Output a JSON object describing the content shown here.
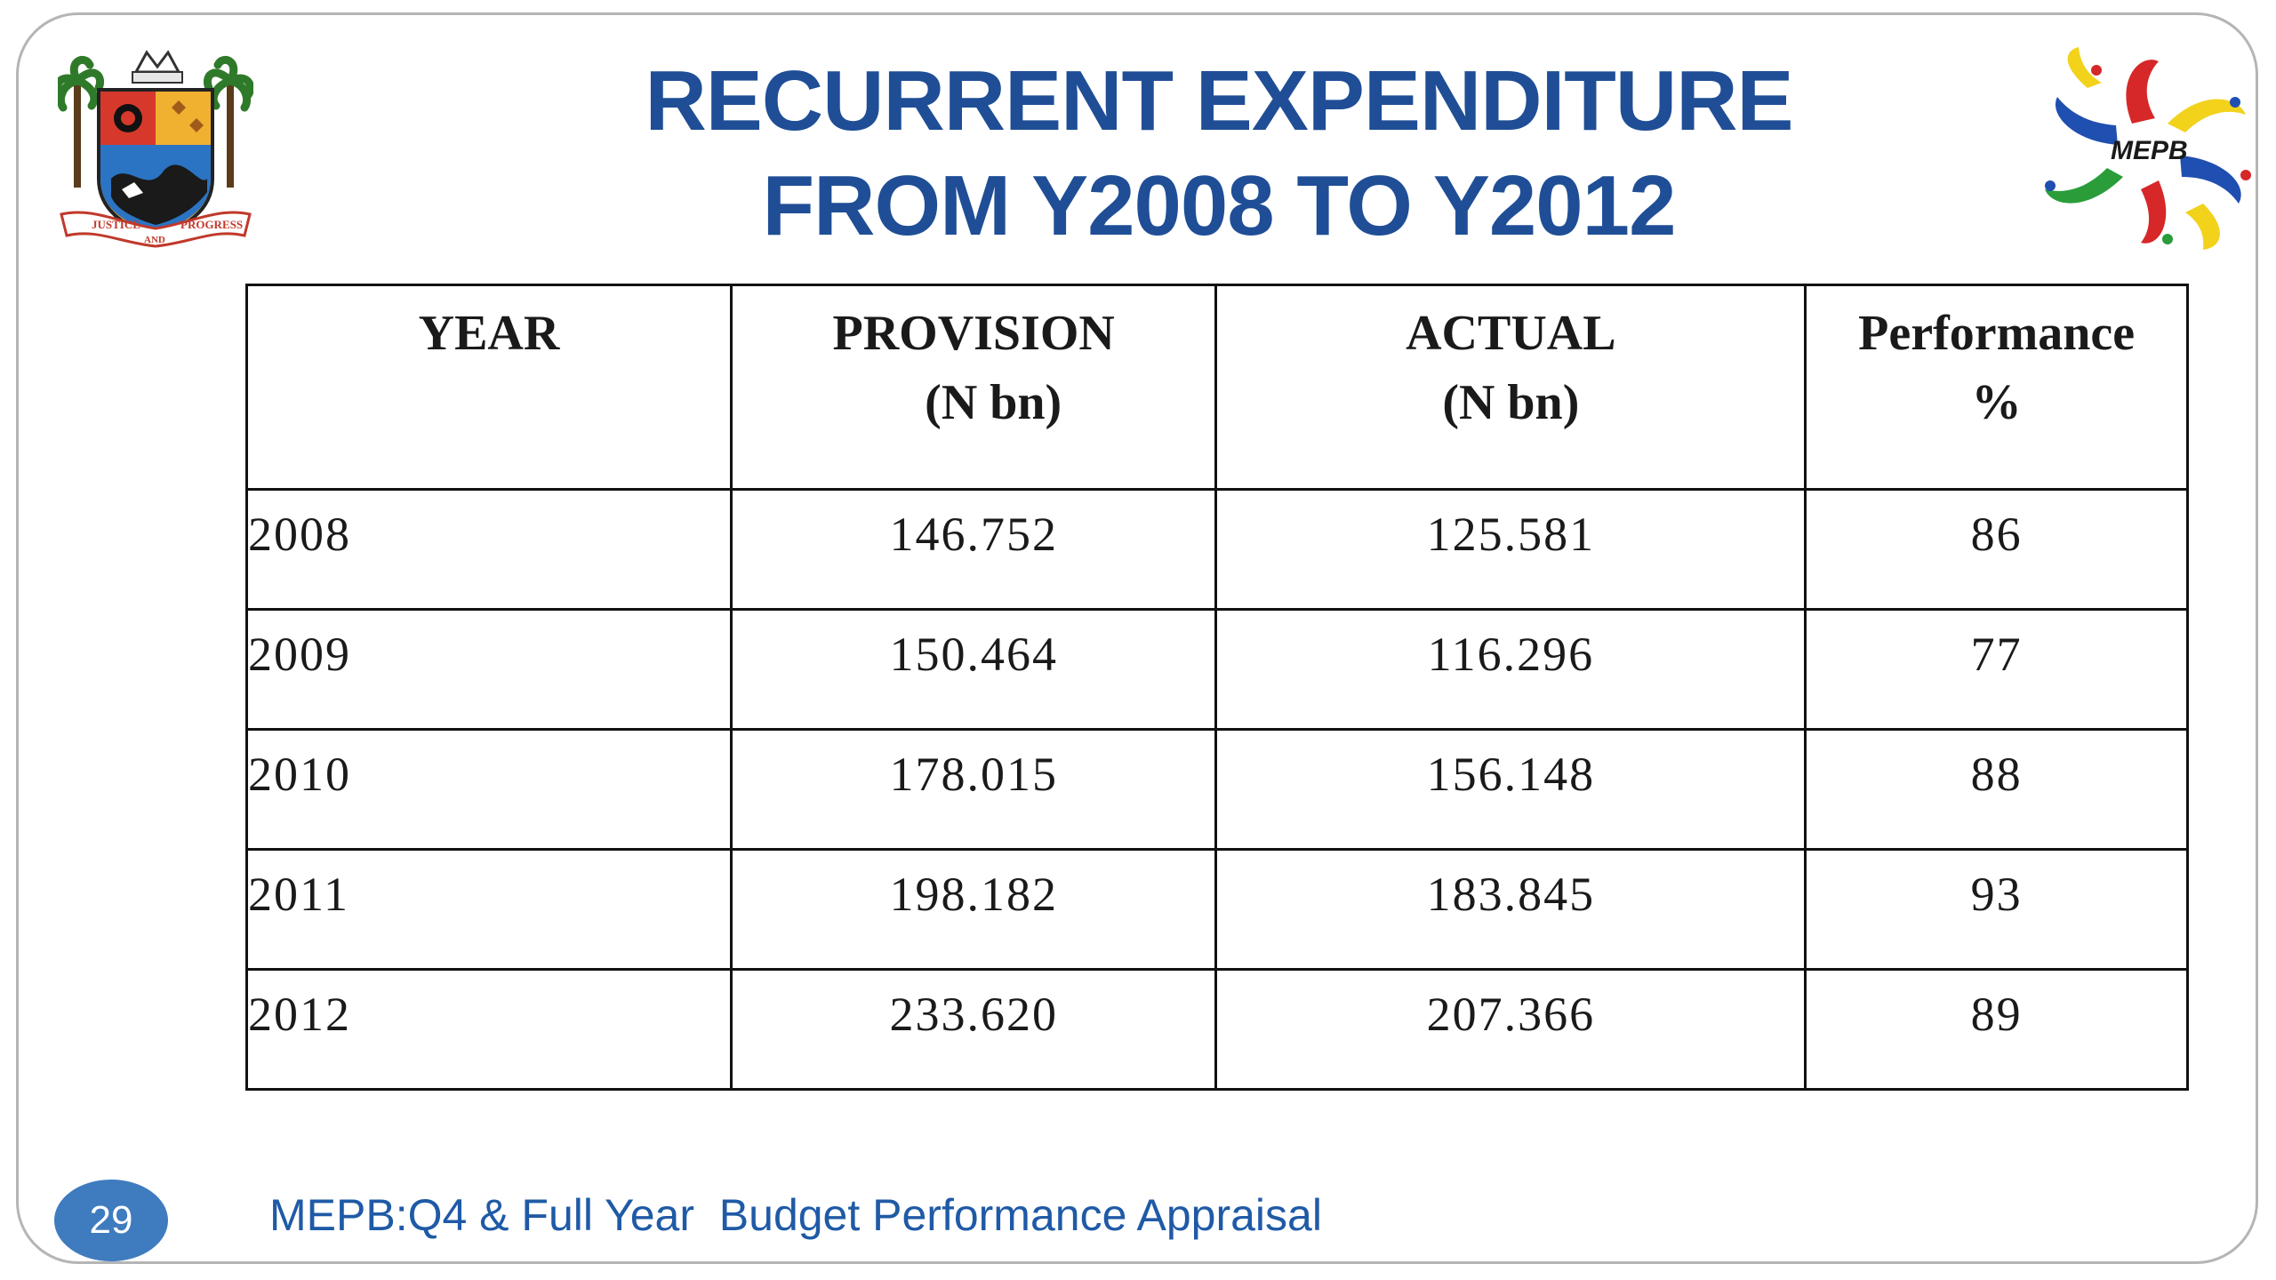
{
  "title": {
    "line1": "RECURRENT EXPENDITURE",
    "line2": "FROM Y2008 TO Y2012"
  },
  "logos": {
    "left": "state-coat-of-arms",
    "left_motto_1": "JUSTICE",
    "left_motto_2": "AND",
    "left_motto_3": "PROGRESS",
    "right": "mepb-logo",
    "right_text": "MEPB"
  },
  "table": {
    "headers": {
      "year": "YEAR",
      "provision_1": "PROVISION",
      "provision_2": "(N bn)",
      "actual_1": "ACTUAL",
      "actual_2": "(N bn)",
      "performance_1": "Performance",
      "performance_2": "%"
    },
    "rows": [
      {
        "year": "2008",
        "provision": "146.752",
        "actual": "125.581",
        "performance": "86"
      },
      {
        "year": "2009",
        "provision": "150.464",
        "actual": "116.296",
        "performance": "77"
      },
      {
        "year": "2010",
        "provision": "178.015",
        "actual": "156.148",
        "performance": "88"
      },
      {
        "year": "2011",
        "provision": "198.182",
        "actual": "183.845",
        "performance": "93"
      },
      {
        "year": "2012",
        "provision": "233.620",
        "actual": "207.366",
        "performance": "89"
      }
    ]
  },
  "footer": {
    "page_number": "29",
    "text": "MEPB:Q4 & Full Year  Budget Performance Appraisal"
  },
  "colors": {
    "title": "#1f4e96",
    "footer_text": "#1f5aa6",
    "badge": "#3f7bbf"
  }
}
